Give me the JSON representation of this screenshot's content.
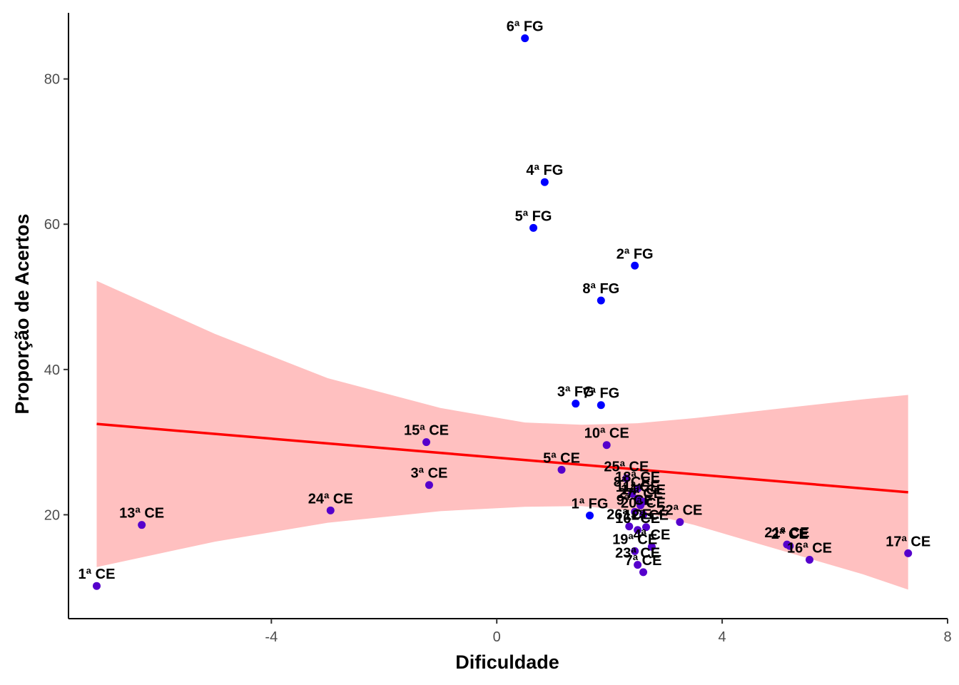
{
  "chart_data": {
    "type": "scatter",
    "xlabel": "Dificuldade",
    "ylabel": "Proporção de Acertos",
    "xlim": [
      -7.6,
      8.0
    ],
    "ylim": [
      5.7,
      89.1
    ],
    "x_ticks": [
      -4,
      0,
      4,
      8
    ],
    "x_tick_labels": [
      "-4",
      "0",
      "4",
      "8"
    ],
    "y_ticks": [
      20,
      40,
      60,
      80
    ],
    "y_tick_labels": [
      "20",
      "40",
      "60",
      "80"
    ],
    "grid": false,
    "legend": "none",
    "colors": {
      "fg_point": "#0000ff",
      "ce_point": "#5500cc",
      "regression_line": "#ff0000",
      "confidence_band": "#ffc0c0",
      "axis": "#000000"
    },
    "points": [
      {
        "label": "6ª FG",
        "x": 0.5,
        "y": 85.6,
        "group": "FG"
      },
      {
        "label": "4ª FG",
        "x": 0.85,
        "y": 65.8,
        "group": "FG"
      },
      {
        "label": "5ª FG",
        "x": 0.65,
        "y": 59.5,
        "group": "FG"
      },
      {
        "label": "2ª FG",
        "x": 2.45,
        "y": 54.3,
        "group": "FG"
      },
      {
        "label": "8ª FG",
        "x": 1.85,
        "y": 49.5,
        "group": "FG"
      },
      {
        "label": "3ª FG",
        "x": 1.4,
        "y": 35.3,
        "group": "FG"
      },
      {
        "label": "7ª FG",
        "x": 1.85,
        "y": 35.1,
        "group": "FG"
      },
      {
        "label": "1ª FG",
        "x": 1.65,
        "y": 19.9,
        "group": "FG"
      },
      {
        "label": "15ª CE",
        "x": -1.25,
        "y": 30.0,
        "group": "CE"
      },
      {
        "label": "10ª CE",
        "x": 1.95,
        "y": 29.6,
        "group": "CE"
      },
      {
        "label": "5ª CE",
        "x": 1.15,
        "y": 26.2,
        "group": "CE"
      },
      {
        "label": "25ª CE",
        "x": 2.3,
        "y": 25.0,
        "group": "CE"
      },
      {
        "label": "18ª CE",
        "x": 2.5,
        "y": 23.6,
        "group": "CE"
      },
      {
        "label": "8ª CE",
        "x": 2.4,
        "y": 22.9,
        "group": "CE"
      },
      {
        "label": "3ª CE",
        "x": -1.2,
        "y": 24.1,
        "group": "CE"
      },
      {
        "label": "24ª CE",
        "x": -2.95,
        "y": 20.6,
        "group": "CE"
      },
      {
        "label": "13ª CE",
        "x": -6.3,
        "y": 18.6,
        "group": "CE"
      },
      {
        "label": "1ª CE",
        "x": -7.1,
        "y": 10.2,
        "group": "CE"
      },
      {
        "label": "11ª CE",
        "x": 2.5,
        "y": 22.2,
        "group": "CE"
      },
      {
        "label": "14ª CE",
        "x": 2.6,
        "y": 21.8,
        "group": "CE"
      },
      {
        "label": "27ª CE",
        "x": 2.55,
        "y": 21.3,
        "group": "CE"
      },
      {
        "label": "9ª CE",
        "x": 2.45,
        "y": 20.4,
        "group": "CE"
      },
      {
        "label": "20ª CE",
        "x": 2.6,
        "y": 20.0,
        "group": "CE"
      },
      {
        "label": "22ª CE",
        "x": 3.25,
        "y": 19.0,
        "group": "CE"
      },
      {
        "label": "26ª CE",
        "x": 2.35,
        "y": 18.4,
        "group": "CE"
      },
      {
        "label": "16ª CE",
        "x": 2.5,
        "y": 17.9,
        "group": "CE"
      },
      {
        "label": "12ª CE",
        "x": 2.65,
        "y": 18.3,
        "group": "CE"
      },
      {
        "label": "19ª CE",
        "x": 2.45,
        "y": 15.0,
        "group": "CE"
      },
      {
        "label": "4ª CE",
        "x": 2.75,
        "y": 15.6,
        "group": "CE"
      },
      {
        "label": "23ª CE",
        "x": 2.5,
        "y": 13.1,
        "group": "CE"
      },
      {
        "label": "7ª CE",
        "x": 2.6,
        "y": 12.1,
        "group": "CE"
      },
      {
        "label": "21ª CE",
        "x": 5.15,
        "y": 15.9,
        "group": "CE"
      },
      {
        "label": "2ª CE",
        "x": 5.2,
        "y": 15.7,
        "group": "CE"
      },
      {
        "label": "16ª CE",
        "x": 5.55,
        "y": 13.8,
        "group": "CE"
      },
      {
        "label": "17ª CE",
        "x": 7.3,
        "y": 14.7,
        "group": "CE"
      }
    ],
    "regression": {
      "x": [
        -7.1,
        7.3
      ],
      "y": [
        32.5,
        23.1
      ]
    },
    "confidence_band": {
      "x": [
        -7.1,
        -5.0,
        -3.0,
        -1.0,
        0.5,
        1.5,
        2.5,
        3.5,
        5.0,
        6.5,
        7.3
      ],
      "lower": [
        12.8,
        16.3,
        18.9,
        20.5,
        21.1,
        21.2,
        20.5,
        18.6,
        15.2,
        11.8,
        9.7
      ],
      "upper": [
        52.2,
        44.9,
        38.8,
        34.7,
        32.7,
        32.4,
        32.6,
        33.3,
        34.6,
        35.9,
        36.5
      ]
    }
  }
}
